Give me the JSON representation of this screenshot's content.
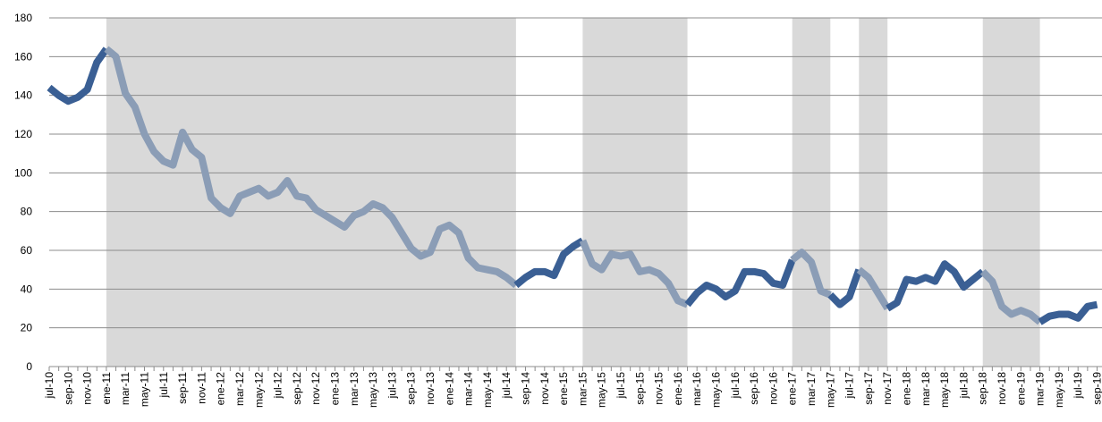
{
  "chart_data": {
    "type": "line",
    "categories": [
      "jul-10",
      null,
      "sep-10",
      null,
      "nov-10",
      null,
      "ene-11",
      null,
      "mar-11",
      null,
      "may-11",
      null,
      "jul-11",
      null,
      "sep-11",
      null,
      "nov-11",
      null,
      "ene-12",
      null,
      "mar-12",
      null,
      "may-12",
      null,
      "jul-12",
      null,
      "sep-12",
      null,
      "nov-12",
      null,
      "ene-13",
      null,
      "mar-13",
      null,
      "may-13",
      null,
      "jul-13",
      null,
      "sep-13",
      null,
      "nov-13",
      null,
      "ene-14",
      null,
      "mar-14",
      null,
      "may-14",
      null,
      "jul-14",
      null,
      "sep-14",
      null,
      "nov-14",
      null,
      "ene-15",
      null,
      "mar-15",
      null,
      "may-15",
      null,
      "jul-15",
      null,
      "sep-15",
      null,
      "nov-15",
      null,
      "ene-16",
      null,
      "mar-16",
      null,
      "may-16",
      null,
      "jul-16",
      null,
      "sep-16",
      null,
      "nov-16",
      null,
      "ene-17",
      null,
      "mar-17",
      null,
      "may-17",
      null,
      "jul-17",
      null,
      "sep-17",
      null,
      "nov-17",
      null,
      "ene-18",
      null,
      "mar-18",
      null,
      "may-18",
      null,
      "jul-18",
      null,
      "sep-18",
      null,
      "nov-18",
      null,
      "ene-19",
      null,
      "mar-19",
      null,
      "may-19",
      null,
      "jul-19",
      null,
      "sep-19"
    ],
    "values": [
      144,
      140,
      137,
      139,
      143,
      157,
      164,
      160,
      141,
      134,
      120,
      111,
      106,
      104,
      121,
      112,
      108,
      87,
      82,
      79,
      88,
      90,
      92,
      88,
      90,
      96,
      88,
      87,
      81,
      78,
      75,
      72,
      78,
      80,
      84,
      82,
      77,
      69,
      61,
      57,
      59,
      71,
      73,
      69,
      56,
      51,
      50,
      49,
      46,
      42,
      46,
      49,
      49,
      47,
      58,
      62,
      65,
      53,
      50,
      58,
      57,
      58,
      49,
      50,
      48,
      43,
      34,
      32,
      38,
      42,
      40,
      36,
      39,
      49,
      49,
      48,
      43,
      42,
      55,
      59,
      54,
      39,
      37,
      32,
      36,
      50,
      46,
      38,
      30,
      33,
      45,
      44,
      46,
      44,
      53,
      49,
      41,
      45,
      49,
      44,
      31,
      27,
      29,
      27,
      23,
      26,
      27,
      27,
      25,
      31,
      32
    ],
    "line_color": "#3a5f94",
    "shaded_line_color": "#8b9db6",
    "shade_color": "#d9d9d9",
    "shaded": [
      [
        6,
        49
      ],
      [
        56,
        67
      ],
      [
        78,
        82
      ],
      [
        85,
        88
      ],
      [
        98,
        104
      ]
    ],
    "ylim": [
      0,
      180
    ],
    "yticks": [
      0,
      20,
      40,
      60,
      80,
      100,
      120,
      140,
      160,
      180
    ],
    "grid": true
  }
}
